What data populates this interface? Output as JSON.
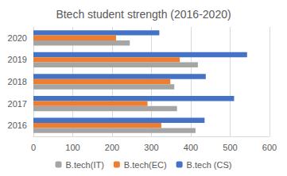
{
  "chart_data": {
    "type": "bar",
    "title": "Btech student strength (2016-2020)",
    "orientation": "horizontal",
    "categories": [
      "2016",
      "2017",
      "2018",
      "2019",
      "2020"
    ],
    "series": [
      {
        "name": "B.tech(IT)",
        "color": "#a5a5a5",
        "values": [
          412,
          365,
          358,
          418,
          245
        ]
      },
      {
        "name": "B.tech(EC)",
        "color": "#ed7d31",
        "values": [
          325,
          290,
          348,
          372,
          210
        ]
      },
      {
        "name": "B.tech (CS)",
        "color": "#4472c4",
        "values": [
          435,
          510,
          438,
          543,
          320
        ]
      }
    ],
    "xlim": [
      0,
      600
    ],
    "xticks": [
      0,
      100,
      200,
      300,
      400,
      500,
      600
    ],
    "grid": true,
    "legend": "bottom"
  }
}
